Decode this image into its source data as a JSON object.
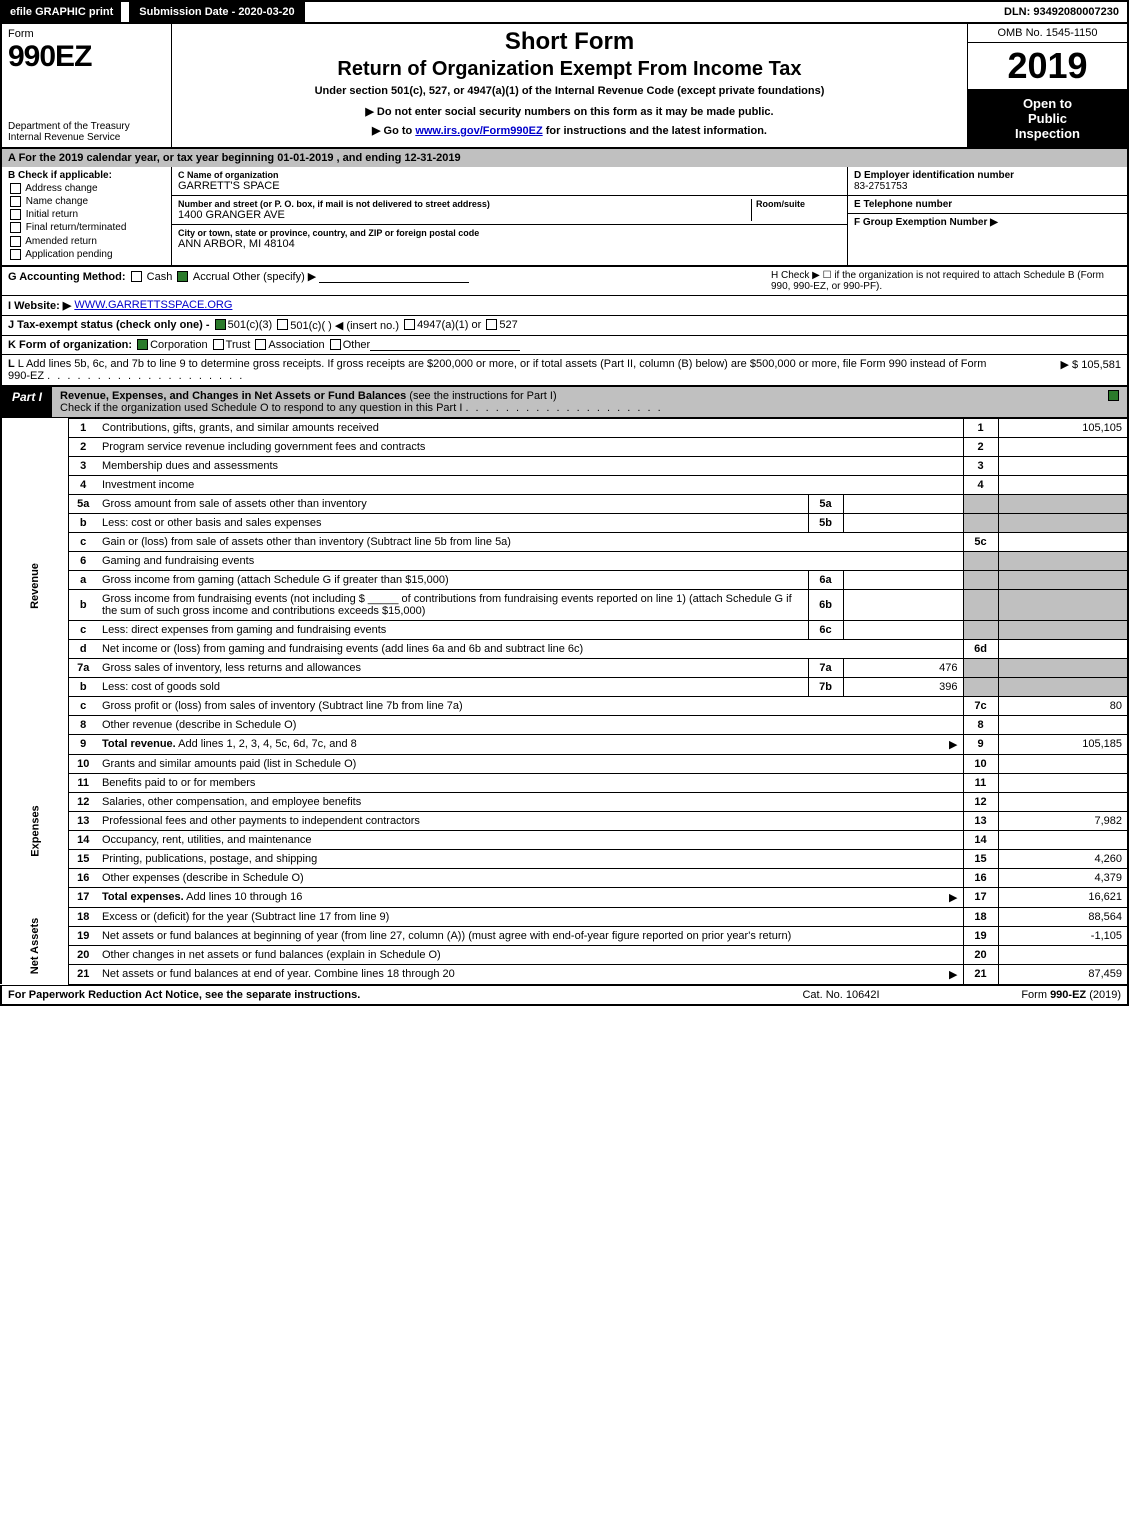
{
  "colors": {
    "black": "#000000",
    "white": "#ffffff",
    "gray_header": "#c0c0c0",
    "link_blue": "#0000cc",
    "check_green": "#2b7a2b"
  },
  "typography": {
    "base_font": "Arial, Helvetica, sans-serif",
    "base_size_pt": 8,
    "form_number_size_pt": 22,
    "tax_year_size_pt": 28,
    "title_size_pt": 18
  },
  "top_bar": {
    "efile": "efile GRAPHIC print",
    "submission": "Submission Date - 2020-03-20",
    "dln": "DLN: 93492080007230"
  },
  "header": {
    "form_label": "Form",
    "form_number": "990EZ",
    "dept_line1": "Department of the Treasury",
    "dept_line2": "Internal Revenue Service",
    "title1": "Short Form",
    "title2": "Return of Organization Exempt From Income Tax",
    "subtitle": "Under section 501(c), 527, or 4947(a)(1) of the Internal Revenue Code (except private foundations)",
    "note": "▶ Do not enter social security numbers on this form as it may be made public.",
    "link_prefix": "▶ Go to ",
    "link_url": "www.irs.gov/Form990EZ",
    "link_suffix": " for instructions and the latest information.",
    "omb": "OMB No. 1545-1150",
    "tax_year": "2019",
    "inspection_line1": "Open to",
    "inspection_line2": "Public",
    "inspection_line3": "Inspection"
  },
  "period": "A For the 2019 calendar year, or tax year beginning 01-01-2019 , and ending 12-31-2019",
  "col_b": {
    "header": "B Check if applicable:",
    "items": [
      "Address change",
      "Name change",
      "Initial return",
      "Final return/terminated",
      "Amended return",
      "Application pending"
    ]
  },
  "col_c": {
    "name_label": "C Name of organization",
    "name_value": "GARRETT'S SPACE",
    "street_label": "Number and street (or P. O. box, if mail is not delivered to street address)",
    "room_label": "Room/suite",
    "street_value": "1400 GRANGER AVE",
    "city_label": "City or town, state or province, country, and ZIP or foreign postal code",
    "city_value": "ANN ARBOR, MI  48104"
  },
  "col_def": {
    "d_label": "D Employer identification number",
    "d_value": "83-2751753",
    "e_label": "E Telephone number",
    "e_value": "",
    "f_label": "F Group Exemption Number ▶",
    "f_value": ""
  },
  "row_g": {
    "label": "G Accounting Method:",
    "cash": "Cash",
    "accrual": "Accrual",
    "other": "Other (specify) ▶",
    "accrual_checked": true
  },
  "row_h": {
    "text": "H Check ▶ ☐ if the organization is not required to attach Schedule B (Form 990, 990-EZ, or 990-PF)."
  },
  "row_i": {
    "label": "I Website: ▶",
    "value": "WWW.GARRETTSSPACE.ORG"
  },
  "row_j": {
    "label": "J Tax-exempt status (check only one) -",
    "opt1": "501(c)(3)",
    "opt2": "501(c)(  ) ◀ (insert no.)",
    "opt3": "4947(a)(1) or",
    "opt4": "527",
    "opt1_checked": true
  },
  "row_k": {
    "label": "K Form of organization:",
    "corp": "Corporation",
    "trust": "Trust",
    "assoc": "Association",
    "other": "Other",
    "corp_checked": true
  },
  "row_l": {
    "text": "L Add lines 5b, 6c, and 7b to line 9 to determine gross receipts. If gross receipts are $200,000 or more, or if total assets (Part II, column (B) below) are $500,000 or more, file Form 990 instead of Form 990-EZ",
    "amount_label": "▶ $",
    "amount": "105,581"
  },
  "part1": {
    "label": "Part I",
    "title_bold": "Revenue, Expenses, and Changes in Net Assets or Fund Balances",
    "title_rest": " (see the instructions for Part I)",
    "check_text": "Check if the organization used Schedule O to respond to any question in this Part I",
    "checked": true
  },
  "side_labels": {
    "revenue": "Revenue",
    "expenses": "Expenses",
    "net_assets": "Net Assets"
  },
  "lines": {
    "revenue": [
      {
        "n": "1",
        "desc": "Contributions, gifts, grants, and similar amounts received",
        "ln": "1",
        "amt": "105,105"
      },
      {
        "n": "2",
        "desc": "Program service revenue including government fees and contracts",
        "ln": "2",
        "amt": ""
      },
      {
        "n": "3",
        "desc": "Membership dues and assessments",
        "ln": "3",
        "amt": ""
      },
      {
        "n": "4",
        "desc": "Investment income",
        "ln": "4",
        "amt": ""
      },
      {
        "n": "5a",
        "desc": "Gross amount from sale of assets other than inventory",
        "subln": "5a",
        "subval": ""
      },
      {
        "n": "b",
        "desc": "Less: cost or other basis and sales expenses",
        "subln": "5b",
        "subval": ""
      },
      {
        "n": "c",
        "desc": "Gain or (loss) from sale of assets other than inventory (Subtract line 5b from line 5a)",
        "ln": "5c",
        "amt": ""
      },
      {
        "n": "6",
        "desc": "Gaming and fundraising events"
      },
      {
        "n": "a",
        "desc": "Gross income from gaming (attach Schedule G if greater than $15,000)",
        "subln": "6a",
        "subval": ""
      },
      {
        "n": "b",
        "desc": "Gross income from fundraising events (not including $ _____ of contributions from fundraising events reported on line 1) (attach Schedule G if the sum of such gross income and contributions exceeds $15,000)",
        "subln": "6b",
        "subval": ""
      },
      {
        "n": "c",
        "desc": "Less: direct expenses from gaming and fundraising events",
        "subln": "6c",
        "subval": ""
      },
      {
        "n": "d",
        "desc": "Net income or (loss) from gaming and fundraising events (add lines 6a and 6b and subtract line 6c)",
        "ln": "6d",
        "amt": ""
      },
      {
        "n": "7a",
        "desc": "Gross sales of inventory, less returns and allowances",
        "subln": "7a",
        "subval": "476"
      },
      {
        "n": "b",
        "desc": "Less: cost of goods sold",
        "subln": "7b",
        "subval": "396"
      },
      {
        "n": "c",
        "desc": "Gross profit or (loss) from sales of inventory (Subtract line 7b from line 7a)",
        "ln": "7c",
        "amt": "80"
      },
      {
        "n": "8",
        "desc": "Other revenue (describe in Schedule O)",
        "ln": "8",
        "amt": ""
      },
      {
        "n": "9",
        "desc": "Total revenue. Add lines 1, 2, 3, 4, 5c, 6d, 7c, and 8",
        "ln": "9",
        "amt": "105,185",
        "bold": true,
        "arrow": true
      }
    ],
    "expenses": [
      {
        "n": "10",
        "desc": "Grants and similar amounts paid (list in Schedule O)",
        "ln": "10",
        "amt": ""
      },
      {
        "n": "11",
        "desc": "Benefits paid to or for members",
        "ln": "11",
        "amt": ""
      },
      {
        "n": "12",
        "desc": "Salaries, other compensation, and employee benefits",
        "ln": "12",
        "amt": ""
      },
      {
        "n": "13",
        "desc": "Professional fees and other payments to independent contractors",
        "ln": "13",
        "amt": "7,982"
      },
      {
        "n": "14",
        "desc": "Occupancy, rent, utilities, and maintenance",
        "ln": "14",
        "amt": ""
      },
      {
        "n": "15",
        "desc": "Printing, publications, postage, and shipping",
        "ln": "15",
        "amt": "4,260"
      },
      {
        "n": "16",
        "desc": "Other expenses (describe in Schedule O)",
        "ln": "16",
        "amt": "4,379"
      },
      {
        "n": "17",
        "desc": "Total expenses. Add lines 10 through 16",
        "ln": "17",
        "amt": "16,621",
        "bold": true,
        "arrow": true
      }
    ],
    "net_assets": [
      {
        "n": "18",
        "desc": "Excess or (deficit) for the year (Subtract line 17 from line 9)",
        "ln": "18",
        "amt": "88,564"
      },
      {
        "n": "19",
        "desc": "Net assets or fund balances at beginning of year (from line 27, column (A)) (must agree with end-of-year figure reported on prior year's return)",
        "ln": "19",
        "amt": "-1,105"
      },
      {
        "n": "20",
        "desc": "Other changes in net assets or fund balances (explain in Schedule O)",
        "ln": "20",
        "amt": ""
      },
      {
        "n": "21",
        "desc": "Net assets or fund balances at end of year. Combine lines 18 through 20",
        "ln": "21",
        "amt": "87,459",
        "arrow": true
      }
    ]
  },
  "footer": {
    "left": "For Paperwork Reduction Act Notice, see the separate instructions.",
    "mid": "Cat. No. 10642I",
    "right": "Form 990-EZ (2019)"
  }
}
